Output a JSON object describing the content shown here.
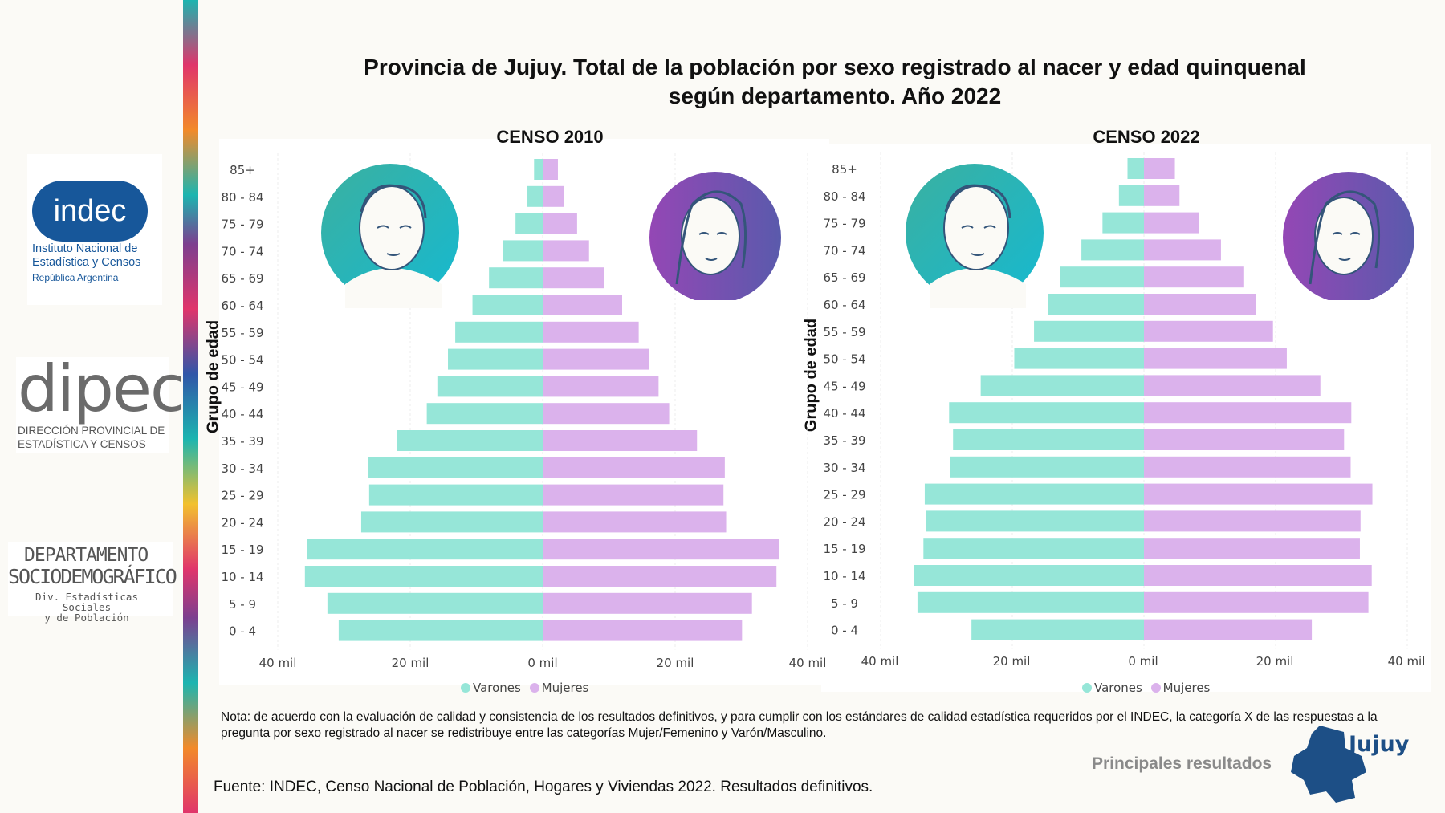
{
  "title": "Provincia de Jujuy. Total de la población por sexo registrado al nacer y edad quinquenal\nsegún departamento. Año 2022",
  "colors": {
    "varones": "#96e6d8",
    "mujeres": "#dbb2ec",
    "accent_blue": "#17579a"
  },
  "logos": {
    "indec_word": "indec",
    "indec_line1": "Instituto Nacional de",
    "indec_line2": "Estadística y Censos",
    "indec_line3": "República Argentina",
    "dipec_word": "dipec",
    "dipec_line1": "DIRECCIÓN PROVINCIAL DE",
    "dipec_line2": "ESTADÍSTICA Y CENSOS",
    "dep_line1": "DEPARTAMENTO",
    "dep_line2": "SOCIODEMOGRÁFICO",
    "dep_line3": "Div. Estadísticas Sociales",
    "dep_line4": "y de Población",
    "jujuy_word": "Jujuy"
  },
  "chart_data": [
    {
      "type": "bar",
      "orientation": "horizontal",
      "subtype": "population-pyramid",
      "title": "CENSO 2010",
      "ylabel": "Grupo de edad",
      "categories": [
        "85+",
        "80 - 84",
        "75 - 79",
        "70 - 74",
        "65 - 69",
        "60 - 64",
        "55 - 59",
        "50 - 54",
        "45 - 49",
        "40 - 44",
        "35 - 39",
        "30 - 34",
        "25 - 29",
        "20 - 24",
        "15 - 19",
        "10 - 14",
        "5 - 9",
        "0 - 4"
      ],
      "series": [
        {
          "name": "Varones",
          "values": [
            1300,
            2300,
            4100,
            6000,
            8100,
            10600,
            13200,
            14300,
            15900,
            17500,
            22000,
            26300,
            26200,
            27400,
            35600,
            35900,
            32500,
            30800
          ]
        },
        {
          "name": "Mujeres",
          "values": [
            2300,
            3200,
            5200,
            7000,
            9300,
            12000,
            14500,
            16100,
            17500,
            19100,
            23300,
            27500,
            27300,
            27700,
            35700,
            35300,
            31600,
            30100
          ]
        }
      ],
      "xlim": [
        -40000,
        40000
      ],
      "xticks": [
        "40 mil",
        "20 mil",
        "0 mil",
        "20 mil",
        "40 mil"
      ],
      "legend": [
        "Varones",
        "Mujeres"
      ]
    },
    {
      "type": "bar",
      "orientation": "horizontal",
      "subtype": "population-pyramid",
      "title": "CENSO 2022",
      "ylabel": "Grupo de edad",
      "categories": [
        "85+",
        "80 - 84",
        "75 - 79",
        "70 - 74",
        "65 - 69",
        "60 - 64",
        "55 - 59",
        "50 - 54",
        "45 - 49",
        "40 - 44",
        "35 - 39",
        "30 - 34",
        "25 - 29",
        "20 - 24",
        "15 - 19",
        "10 - 14",
        "5 - 9",
        "0 - 4"
      ],
      "series": [
        {
          "name": "Varones",
          "values": [
            2500,
            3800,
            6300,
            9500,
            12800,
            14600,
            16700,
            19700,
            24800,
            29600,
            29000,
            29500,
            33300,
            33100,
            33500,
            35000,
            34400,
            26200
          ]
        },
        {
          "name": "Mujeres",
          "values": [
            4700,
            5400,
            8300,
            11700,
            15100,
            17000,
            19600,
            21700,
            26800,
            31500,
            30400,
            31400,
            34700,
            32900,
            32800,
            34600,
            34100,
            25500
          ]
        }
      ],
      "xlim": [
        -40000,
        40000
      ],
      "xticks": [
        "40 mil",
        "20 mil",
        "0 mil",
        "20 mil",
        "40 mil"
      ],
      "legend": [
        "Varones",
        "Mujeres"
      ]
    }
  ],
  "nota": "Nota: de acuerdo con la evaluación de calidad y consistencia de los resultados definitivos, y para cumplir con los estándares de calidad estadística requeridos por el INDEC, la categoría X de las respuestas a la pregunta por sexo registrado al nacer se redistribuye entre las categorías Mujer/Femenino y Varón/Masculino.",
  "fuente": "Fuente: INDEC, Censo Nacional de Población, Hogares y Viviendas 2022. Resultados definitivos.",
  "principales": "Principales resultados"
}
